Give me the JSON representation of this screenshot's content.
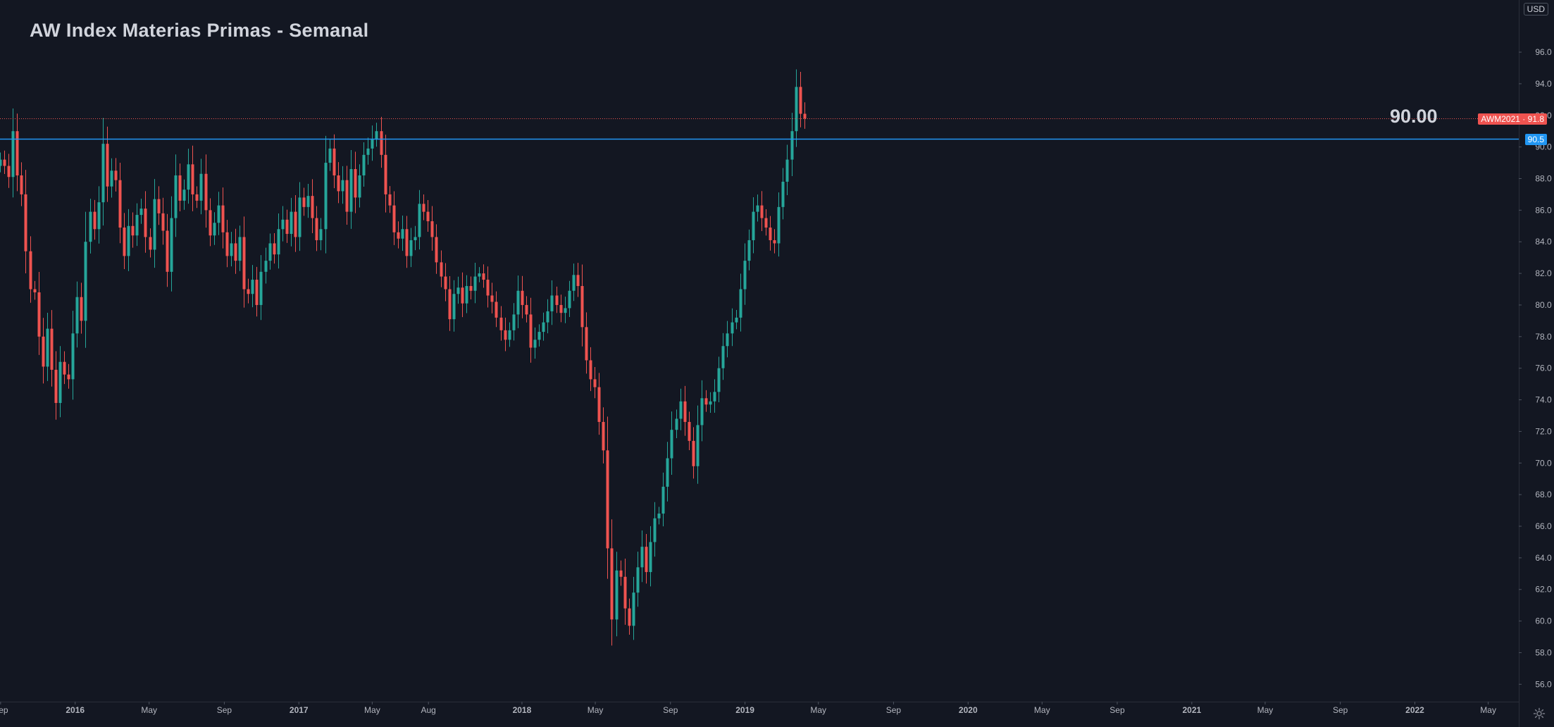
{
  "header": {
    "title": "AW Index Materias Primas - Semanal"
  },
  "currency": "USD",
  "annotation": {
    "text": "90.00"
  },
  "tags": {
    "symbol": "AWM2021",
    "last_price": "91.8",
    "line_price": "90.5"
  },
  "colors": {
    "background": "#131722",
    "up": "#26a69a",
    "down": "#ef5350",
    "level_line": "#2196f3",
    "price_line": "#ef5350",
    "axis_text": "#b2b5be",
    "axis_border": "#2a2e39"
  },
  "icons": {
    "settings": "gear-icon"
  },
  "chart_data": {
    "type": "candlestick",
    "title": "AW Index Materias Primas - Semanal",
    "interval": "weekly",
    "y_range": [
      54.9,
      99.3
    ],
    "y_ticks": [
      "56.0",
      "58.0",
      "60.0",
      "62.0",
      "64.0",
      "66.0",
      "68.0",
      "70.0",
      "72.0",
      "74.0",
      "76.0",
      "78.0",
      "80.0",
      "82.0",
      "84.0",
      "86.0",
      "88.0",
      "90.0",
      "92.0",
      "94.0",
      "96.0"
    ],
    "x_range": [
      "2015-08-31",
      "2022-06-20"
    ],
    "x_ticks": [
      {
        "label": "Sep",
        "date": "2015-09-01"
      },
      {
        "label": "2016",
        "date": "2016-01-01"
      },
      {
        "label": "May",
        "date": "2016-05-01"
      },
      {
        "label": "Sep",
        "date": "2016-09-01"
      },
      {
        "label": "2017",
        "date": "2017-01-01"
      },
      {
        "label": "May",
        "date": "2017-05-01"
      },
      {
        "label": "Aug",
        "date": "2017-08-01"
      },
      {
        "label": "2018",
        "date": "2018-01-01"
      },
      {
        "label": "May",
        "date": "2018-05-01"
      },
      {
        "label": "Sep",
        "date": "2018-09-01"
      },
      {
        "label": "2019",
        "date": "2019-01-01"
      },
      {
        "label": "May",
        "date": "2019-05-01"
      },
      {
        "label": "Sep",
        "date": "2019-09-01"
      },
      {
        "label": "2020",
        "date": "2020-01-01"
      },
      {
        "label": "May",
        "date": "2020-05-01"
      },
      {
        "label": "Sep",
        "date": "2020-09-01"
      },
      {
        "label": "2021",
        "date": "2021-01-01"
      },
      {
        "label": "May",
        "date": "2021-05-01"
      },
      {
        "label": "Sep",
        "date": "2021-09-01"
      },
      {
        "label": "2022",
        "date": "2022-01-01"
      },
      {
        "label": "May",
        "date": "2022-05-01"
      }
    ],
    "horizontal_line": 90.5,
    "last_price": 91.8,
    "start_date": "2015-08-31",
    "closes": [
      89.2,
      88.8,
      88.1,
      91.0,
      88.2,
      87.0,
      83.4,
      81.0,
      80.8,
      78.0,
      76.1,
      78.5,
      75.9,
      73.8,
      76.4,
      75.6,
      75.3,
      78.2,
      80.5,
      79.0,
      84.0,
      85.9,
      84.8,
      86.5,
      90.2,
      87.5,
      88.5,
      87.9,
      84.9,
      83.1,
      85.0,
      84.4,
      85.7,
      86.1,
      84.3,
      83.5,
      86.7,
      85.8,
      84.7,
      82.1,
      85.5,
      88.2,
      86.6,
      87.3,
      88.9,
      87.0,
      86.6,
      88.3,
      86.0,
      84.4,
      85.2,
      86.3,
      84.6,
      83.1,
      83.9,
      82.8,
      84.3,
      81.0,
      80.7,
      81.6,
      80.0,
      82.1,
      82.8,
      83.9,
      83.2,
      84.8,
      85.4,
      84.5,
      85.9,
      84.3,
      86.8,
      86.2,
      86.9,
      85.5,
      84.1,
      84.8,
      89.0,
      89.9,
      88.2,
      87.2,
      87.9,
      85.9,
      88.6,
      86.8,
      88.2,
      89.5,
      89.9,
      90.5,
      91.0,
      89.5,
      87.0,
      86.3,
      84.6,
      84.2,
      84.8,
      83.1,
      84.1,
      84.3,
      86.4,
      85.9,
      85.3,
      84.3,
      82.7,
      81.8,
      81.0,
      79.1,
      80.7,
      81.1,
      80.1,
      81.2,
      80.9,
      81.8,
      82.0,
      81.6,
      80.6,
      80.2,
      79.2,
      78.4,
      77.8,
      78.4,
      79.4,
      80.9,
      80.0,
      79.4,
      77.3,
      77.8,
      78.3,
      78.9,
      79.6,
      80.6,
      80.0,
      79.5,
      79.8,
      80.9,
      81.9,
      81.2,
      78.6,
      76.5,
      75.3,
      74.8,
      72.6,
      70.8,
      64.6,
      60.1,
      63.2,
      62.8,
      60.8,
      59.7,
      61.8,
      63.4,
      64.7,
      63.1,
      65.0,
      66.5,
      66.8,
      68.5,
      70.3,
      72.1,
      72.8,
      73.9,
      72.6,
      71.4,
      69.8,
      72.4,
      74.1,
      73.7,
      73.9,
      74.5,
      76.0,
      77.4,
      78.2,
      78.9,
      79.2,
      81.0,
      82.8,
      84.1,
      85.9,
      86.3,
      85.5,
      84.9,
      84.1,
      83.9,
      86.2,
      87.8,
      89.2,
      91.0,
      93.8,
      92.1,
      91.8
    ]
  }
}
